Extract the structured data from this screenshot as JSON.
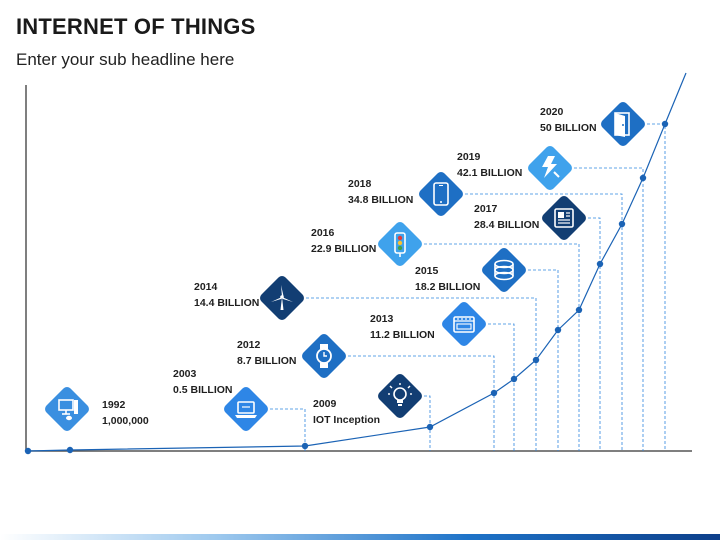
{
  "header": {
    "title": "INTERNET OF THINGS",
    "subtitle": "Enter your sub headline here"
  },
  "chart_data": {
    "type": "line",
    "milestones": [
      {
        "year": "1992",
        "value": "1,000,000",
        "icon": "desktop-computer-icon",
        "color": "#3a8fe0"
      },
      {
        "year": "2003",
        "value": "0.5 BILLION",
        "icon": "laptop-icon",
        "color": "#2e86e6"
      },
      {
        "year": "2009",
        "value": "IOT Inception",
        "icon": "light-bulb-icon",
        "color": "#123e73"
      },
      {
        "year": "2012",
        "value": "8.7 BILLION",
        "icon": "wristwatch-icon",
        "color": "#1e6fc4"
      },
      {
        "year": "2013",
        "value": "11.2 BILLION",
        "icon": "oven-icon",
        "color": "#2e86e6"
      },
      {
        "year": "2014",
        "value": "14.4 BILLION",
        "icon": "wind-turbine-icon",
        "color": "#123e73"
      },
      {
        "year": "2015",
        "value": "18.2 BILLION",
        "icon": "database-icon",
        "color": "#1e6fc4"
      },
      {
        "year": "2016",
        "value": "22.9 BILLION",
        "icon": "traffic-light-icon",
        "color": "#3fa2ec"
      },
      {
        "year": "2017",
        "value": "28.4 BILLION",
        "icon": "newspaper-icon",
        "color": "#123e73"
      },
      {
        "year": "2018",
        "value": "34.8 BILLION",
        "icon": "tablet-icon",
        "color": "#1e6fc4"
      },
      {
        "year": "2019",
        "value": "42.1 BILLION",
        "icon": "plug-icon",
        "color": "#3fa2ec"
      },
      {
        "year": "2020",
        "value": "50 BILLION",
        "icon": "door-icon",
        "color": "#1e6fc4"
      }
    ],
    "colors": {
      "line": "#1b63b5",
      "guide": "#2f86e0",
      "axis": "#555555"
    }
  }
}
